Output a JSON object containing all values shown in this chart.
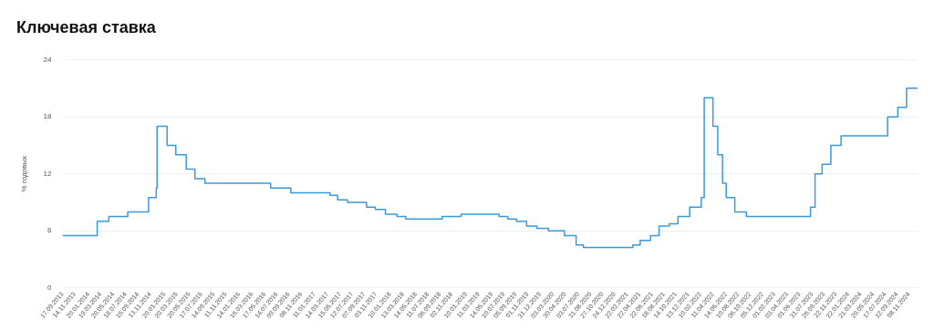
{
  "chart_data": {
    "type": "step",
    "title": "Ключевая ставка",
    "ylabel": "% годовых",
    "x": [
      "2013-09-17",
      "2014-03-03",
      "2014-04-28",
      "2014-07-28",
      "2014-11-05",
      "2014-12-12",
      "2014-12-16",
      "2015-02-02",
      "2015-03-16",
      "2015-05-05",
      "2015-06-16",
      "2015-08-03",
      "2016-06-14",
      "2016-09-19",
      "2017-03-27",
      "2017-05-02",
      "2017-06-19",
      "2017-09-18",
      "2017-10-30",
      "2017-12-18",
      "2018-02-12",
      "2018-03-26",
      "2018-09-17",
      "2018-12-17",
      "2019-06-17",
      "2019-07-29",
      "2019-09-09",
      "2019-10-28",
      "2019-12-16",
      "2020-02-10",
      "2020-04-27",
      "2020-06-22",
      "2020-07-27",
      "2021-03-22",
      "2021-04-26",
      "2021-06-15",
      "2021-07-26",
      "2021-09-13",
      "2021-10-25",
      "2021-12-20",
      "2022-02-14",
      "2022-02-28",
      "2022-04-11",
      "2022-05-04",
      "2022-05-27",
      "2022-06-14",
      "2022-07-25",
      "2022-09-19",
      "2023-07-24",
      "2023-08-15",
      "2023-09-18",
      "2023-10-30",
      "2023-12-18",
      "2024-07-29",
      "2024-09-16",
      "2024-10-28",
      "2024-12-20"
    ],
    "series": [
      {
        "color": "#3a9ad9",
        "values": [
          5.5,
          7,
          7.5,
          8,
          9.5,
          10.5,
          17,
          15,
          14,
          12.5,
          11.5,
          11,
          10.5,
          10,
          9.75,
          9.25,
          9,
          8.5,
          8.25,
          7.75,
          7.5,
          7.25,
          7.5,
          7.75,
          7.5,
          7.25,
          7,
          6.5,
          6.25,
          6,
          5.5,
          4.5,
          4.25,
          4.5,
          5,
          5.5,
          6.5,
          6.75,
          7.5,
          8.5,
          9.5,
          20,
          17,
          14,
          11,
          9.5,
          8,
          7.5,
          8.5,
          12,
          13,
          15,
          16,
          18,
          19,
          21,
          21
        ]
      }
    ],
    "xlim": [
      "2013-09-17",
      "2024-12-20"
    ],
    "xticks": [
      {
        "value": "2013-09-17",
        "label": "17.09.2013"
      },
      {
        "value": "2013-11-14",
        "label": "14.11.2013"
      },
      {
        "value": "2014-01-20",
        "label": "20.01.2014"
      },
      {
        "value": "2014-03-19",
        "label": "19.03.2014"
      },
      {
        "value": "2014-05-20",
        "label": "20.05.2014"
      },
      {
        "value": "2014-07-18",
        "label": "18.07.2014"
      },
      {
        "value": "2014-09-15",
        "label": "15.09.2014"
      },
      {
        "value": "2014-11-13",
        "label": "13.11.2014"
      },
      {
        "value": "2015-01-20",
        "label": "20.01.2015"
      },
      {
        "value": "2015-03-20",
        "label": "20.03.2015"
      },
      {
        "value": "2015-05-20",
        "label": "20.05.2015"
      },
      {
        "value": "2015-07-17",
        "label": "17.07.2015"
      },
      {
        "value": "2015-09-14",
        "label": "14.09.2015"
      },
      {
        "value": "2015-11-11",
        "label": "11.11.2015"
      },
      {
        "value": "2016-01-14",
        "label": "14.01.2016"
      },
      {
        "value": "2016-03-16",
        "label": "16.03.2016"
      },
      {
        "value": "2016-05-17",
        "label": "17.05.2016"
      },
      {
        "value": "2016-07-14",
        "label": "14.07.2016"
      },
      {
        "value": "2016-09-09",
        "label": "09.09.2016"
      },
      {
        "value": "2016-11-08",
        "label": "08.11.2016"
      },
      {
        "value": "2017-01-11",
        "label": "11.01.2017"
      },
      {
        "value": "2017-03-14",
        "label": "14.03.2017"
      },
      {
        "value": "2017-05-15",
        "label": "15.05.2017"
      },
      {
        "value": "2017-07-12",
        "label": "12.07.2017"
      },
      {
        "value": "2017-09-07",
        "label": "07.09.2017"
      },
      {
        "value": "2017-11-03",
        "label": "03.11.2017"
      },
      {
        "value": "2018-01-10",
        "label": "10.01.2018"
      },
      {
        "value": "2018-03-13",
        "label": "13.03.2018"
      },
      {
        "value": "2018-05-14",
        "label": "14.05.2018"
      },
      {
        "value": "2018-07-11",
        "label": "11.07.2018"
      },
      {
        "value": "2018-09-06",
        "label": "06.09.2018"
      },
      {
        "value": "2018-11-02",
        "label": "02.11.2018"
      },
      {
        "value": "2019-01-10",
        "label": "10.01.2019"
      },
      {
        "value": "2019-03-11",
        "label": "11.03.2019"
      },
      {
        "value": "2019-05-14",
        "label": "14.05.2019"
      },
      {
        "value": "2019-07-10",
        "label": "10.07.2019"
      },
      {
        "value": "2019-09-05",
        "label": "05.09.2019"
      },
      {
        "value": "2019-11-01",
        "label": "01.11.2019"
      },
      {
        "value": "2019-12-31",
        "label": "31.12.2019"
      },
      {
        "value": "2020-03-03",
        "label": "03.03.2020"
      },
      {
        "value": "2020-04-30",
        "label": "30.04.2020"
      },
      {
        "value": "2020-07-03",
        "label": "03.07.2020"
      },
      {
        "value": "2020-08-31",
        "label": "31.08.2020"
      },
      {
        "value": "2020-10-27",
        "label": "27.10.2020"
      },
      {
        "value": "2020-12-24",
        "label": "24.12.2020"
      },
      {
        "value": "2021-02-22",
        "label": "22.02.2021"
      },
      {
        "value": "2021-04-22",
        "label": "22.04.2021"
      },
      {
        "value": "2021-06-22",
        "label": "22.06.2021"
      },
      {
        "value": "2021-08-18",
        "label": "18.08.2021"
      },
      {
        "value": "2021-10-14",
        "label": "14.10.2021"
      },
      {
        "value": "2021-12-13",
        "label": "13.12.2021"
      },
      {
        "value": "2022-02-10",
        "label": "10.02.2022"
      },
      {
        "value": "2022-04-11",
        "label": "11.04.2022"
      },
      {
        "value": "2022-06-14",
        "label": "14.06.2022"
      },
      {
        "value": "2022-08-10",
        "label": "10.08.2022"
      },
      {
        "value": "2022-10-06",
        "label": "06.10.2022"
      },
      {
        "value": "2022-12-05",
        "label": "05.12.2022"
      },
      {
        "value": "2023-02-01",
        "label": "01.02.2023"
      },
      {
        "value": "2023-04-03",
        "label": "03.04.2023"
      },
      {
        "value": "2023-06-01",
        "label": "01.06.2023"
      },
      {
        "value": "2023-07-31",
        "label": "31.07.2023"
      },
      {
        "value": "2023-09-26",
        "label": "26.09.2023"
      },
      {
        "value": "2023-11-22",
        "label": "22.11.2023"
      },
      {
        "value": "2024-01-22",
        "label": "22.01.2024"
      },
      {
        "value": "2024-03-21",
        "label": "21.03.2024"
      },
      {
        "value": "2024-05-20",
        "label": "20.05.2024"
      },
      {
        "value": "2024-07-17",
        "label": "17.07.2024"
      },
      {
        "value": "2024-09-12",
        "label": "12.09.2024"
      },
      {
        "value": "2024-11-08",
        "label": "08.11.2024"
      }
    ],
    "ylim": [
      0,
      24
    ],
    "yticks": [
      0,
      6,
      12,
      18,
      24
    ],
    "grid": "y",
    "legend": false,
    "marker": "none",
    "line_style": "solid"
  }
}
